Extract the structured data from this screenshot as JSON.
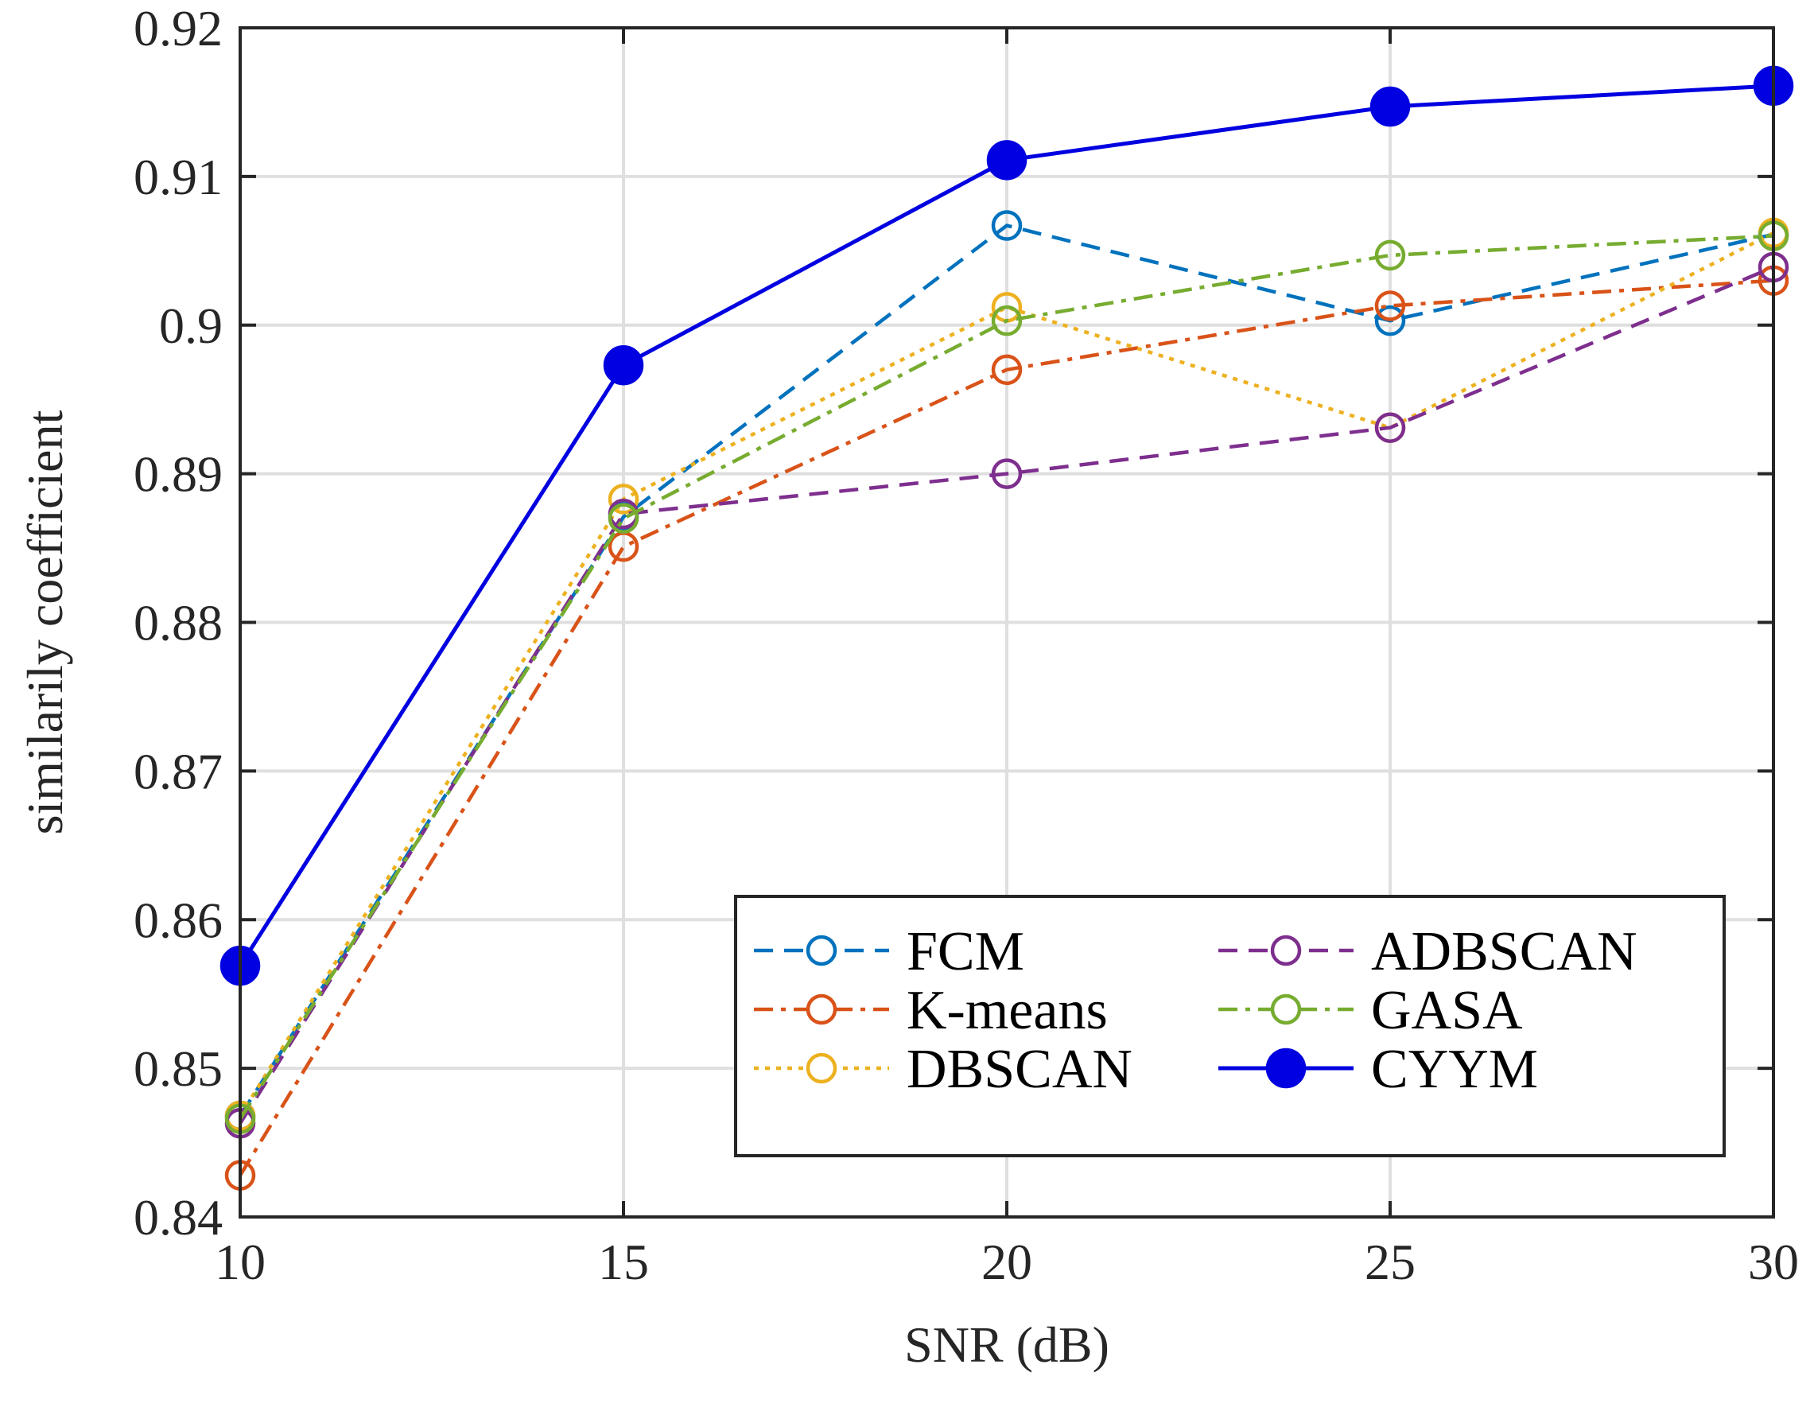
{
  "chart_data": {
    "type": "line",
    "title": "",
    "xlabel": "SNR (dB)",
    "ylabel": "similarily coefficient",
    "x": [
      10,
      15,
      20,
      25,
      30
    ],
    "xlim": [
      10,
      30
    ],
    "ylim": [
      0.84,
      0.92
    ],
    "xticks": [
      10,
      15,
      20,
      25,
      30
    ],
    "xtick_labels": [
      "10",
      "15",
      "20",
      "25",
      "30"
    ],
    "yticks": [
      0.84,
      0.85,
      0.86,
      0.87,
      0.88,
      0.89,
      0.9,
      0.91,
      0.92
    ],
    "ytick_labels": [
      "0.84",
      "0.85",
      "0.86",
      "0.87",
      "0.88",
      "0.89",
      "0.9",
      "0.91",
      "0.92"
    ],
    "grid": true,
    "legend_position": "bottom-right",
    "legend_columns": 2,
    "series": [
      {
        "name": "FCM",
        "values": [
          0.8468,
          0.8871,
          0.9067,
          0.9003,
          0.9061
        ],
        "color": "#0072BD",
        "dash": "dashed",
        "marker": "open-circle"
      },
      {
        "name": "K-means",
        "values": [
          0.8428,
          0.8851,
          0.897,
          0.9013,
          0.903
        ],
        "color": "#D95319",
        "dash": "dashdot",
        "marker": "open-circle"
      },
      {
        "name": "DBSCAN",
        "values": [
          0.8468,
          0.8883,
          0.9012,
          0.8931,
          0.9062
        ],
        "color": "#EDB120",
        "dash": "dotted",
        "marker": "open-circle"
      },
      {
        "name": "ADBSCAN",
        "values": [
          0.8463,
          0.8873,
          0.89,
          0.8931,
          0.9039
        ],
        "color": "#7E2F8E",
        "dash": "dashed",
        "marker": "open-circle"
      },
      {
        "name": "GASA",
        "values": [
          0.8466,
          0.887,
          0.9003,
          0.9047,
          0.906
        ],
        "color": "#77AC30",
        "dash": "dashdot",
        "marker": "open-circle"
      },
      {
        "name": "CYYM",
        "values": [
          0.8569,
          0.8973,
          0.9111,
          0.9147,
          0.9161
        ],
        "color": "#0000E0",
        "dash": "solid",
        "marker": "filled-circle"
      }
    ]
  }
}
